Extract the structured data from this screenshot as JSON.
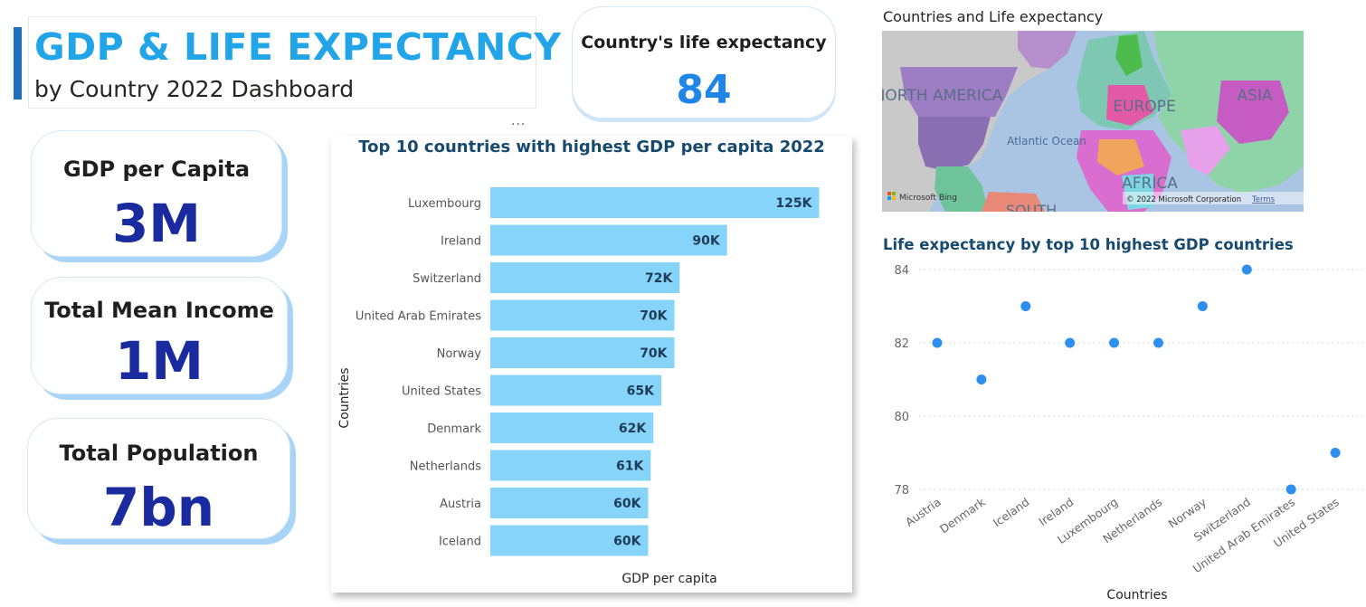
{
  "header": {
    "title": "GDP & LIFE EXPECTANCY",
    "subtitle": "by Country 2022 Dashboard"
  },
  "kpis": {
    "life_expectancy": {
      "label": "Country's life expectancy",
      "value": "84"
    },
    "gdp_per_capita": {
      "label": "GDP per Capita",
      "value": "3M"
    },
    "total_mean_income": {
      "label": "Total Mean Income",
      "value": "1M"
    },
    "total_population": {
      "label": "Total Population",
      "value": "7bn"
    }
  },
  "more_options": "...",
  "map": {
    "title": "Countries and Life expectancy",
    "labels": {
      "north_america": "NORTH AMERICA",
      "europe": "EUROPE",
      "asia": "ASIA",
      "africa": "AFRICA",
      "south": "SOUTH",
      "atlantic": "Atlantic Ocean"
    },
    "bing_label": "Microsoft Bing",
    "copyright": "© 2022 Microsoft Corporation",
    "terms": "Terms"
  },
  "chart_data": [
    {
      "type": "bar",
      "orientation": "horizontal",
      "title": "Top 10 countries with highest GDP per capita 2022",
      "xlabel": "GDP per capita",
      "ylabel": "Countries",
      "categories": [
        "Luxembourg",
        "Ireland",
        "Switzerland",
        "United Arab Emirates",
        "Norway",
        "United States",
        "Denmark",
        "Netherlands",
        "Austria",
        "Iceland"
      ],
      "values": [
        125000,
        90000,
        72000,
        70000,
        70000,
        65000,
        62000,
        61000,
        60000,
        60000
      ],
      "data_labels": [
        "125K",
        "90K",
        "72K",
        "70K",
        "70K",
        "65K",
        "62K",
        "61K",
        "60K",
        "60K"
      ],
      "bar_color": "#86d4fa",
      "xlim": [
        0,
        130000
      ]
    },
    {
      "type": "scatter",
      "title": "Life expectancy by top 10 highest GDP countries",
      "xlabel": "Countries",
      "ylabel": "",
      "categories": [
        "Austria",
        "Denmark",
        "Iceland",
        "Ireland",
        "Luxembourg",
        "Netherlands",
        "Norway",
        "Switzerland",
        "United Arab Emirates",
        "United States"
      ],
      "values": [
        82,
        81,
        83,
        82,
        82,
        82,
        83,
        84,
        78,
        79
      ],
      "y_ticks": [
        78,
        80,
        82,
        84
      ],
      "ylim": [
        78,
        84
      ],
      "grid": true,
      "point_color": "#2f8fef"
    }
  ]
}
